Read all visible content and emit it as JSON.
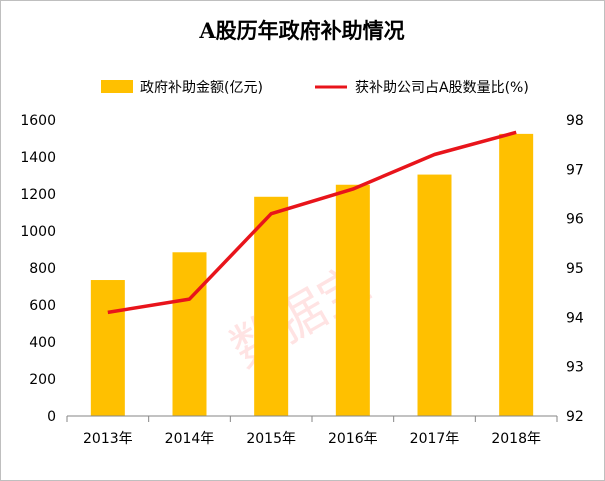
{
  "chart_data": {
    "type": "bar+line",
    "title": "A股历年政府补助情况",
    "categories": [
      "2013年",
      "2014年",
      "2015年",
      "2016年",
      "2017年",
      "2018年"
    ],
    "series": [
      {
        "name": "政府补助金额(亿元)",
        "kind": "bar",
        "axis": "left",
        "color": "#FFC000",
        "values": [
          735,
          885,
          1185,
          1250,
          1305,
          1525
        ]
      },
      {
        "name": "获补助公司占A股数量比(%)",
        "kind": "line",
        "axis": "right",
        "color": "#E8141B",
        "values": [
          94.1,
          94.37,
          96.1,
          96.6,
          97.3,
          97.75
        ]
      }
    ],
    "left_axis": {
      "min": 0,
      "max": 1600,
      "ticks": [
        "0",
        "200",
        "400",
        "600",
        "800",
        "1000",
        "1200",
        "1400",
        "1600"
      ]
    },
    "right_axis": {
      "min": 92,
      "max": 98,
      "ticks": [
        "92",
        "93",
        "94",
        "95",
        "96",
        "97",
        "98"
      ]
    },
    "legend_position": "top",
    "watermark": "数据宝"
  }
}
